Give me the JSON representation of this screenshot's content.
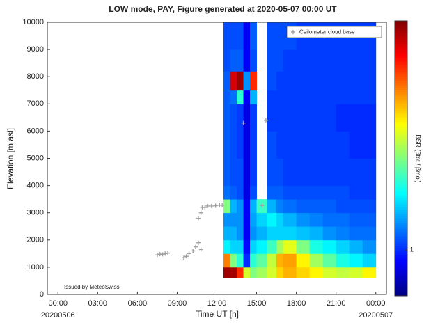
{
  "chart_data": {
    "type": "heatmap",
    "title": "LOW mode, PAY, Figure generated at 2020-05-07 00:00 UT",
    "x_label": "Time UT [h]",
    "y_label": "Elevation [m asl]",
    "colorbar_label": "BSR (βtot / βmol)",
    "annotation": "Issued by MeteoSwiss",
    "xlim": [
      -0.8,
      24.8
    ],
    "xticks": [
      {
        "value": 0,
        "label": "00:00"
      },
      {
        "value": 3,
        "label": "03:00"
      },
      {
        "value": 6,
        "label": "06:00"
      },
      {
        "value": 9,
        "label": "09:00"
      },
      {
        "value": 12,
        "label": "12:00"
      },
      {
        "value": 15,
        "label": "15:00"
      },
      {
        "value": 18,
        "label": "18:00"
      },
      {
        "value": 21,
        "label": "21:00"
      },
      {
        "value": 24,
        "label": "00:00"
      }
    ],
    "x_date_labels": [
      {
        "value": 0,
        "label": "20200506"
      },
      {
        "value": 24,
        "label": "20200507"
      }
    ],
    "ylim": [
      0,
      10000
    ],
    "yticks": [
      0,
      1000,
      2000,
      3000,
      4000,
      5000,
      6000,
      7000,
      8000,
      9000,
      10000
    ],
    "x_edges": [
      12.5,
      13,
      13.5,
      14,
      14.5,
      15,
      15.8,
      16.5,
      17,
      18,
      19,
      20,
      21,
      22,
      23,
      24
    ],
    "y_edges": [
      600,
      1000,
      1500,
      2000,
      2500,
      3000,
      3500,
      4000,
      5000,
      6000,
      7000,
      7500,
      8200,
      9000,
      10000
    ],
    "zlim": [
      0,
      6
    ],
    "zticks": [
      1
    ],
    "z": [
      [
        5.8,
        5.8,
        5,
        3.5,
        3,
        3.2,
        3.5,
        4,
        4.2,
        4,
        3.8,
        3.5,
        3.4,
        3.5,
        3.8
      ],
      [
        4.5,
        3,
        2.5,
        1,
        2.5,
        2.8,
        3.4,
        4.2,
        4.3,
        3.8,
        3.2,
        2.8,
        2.4,
        2.2,
        2
      ],
      [
        2.2,
        2,
        2,
        0.8,
        2,
        2.2,
        2.6,
        3.2,
        3.6,
        3,
        2.4,
        2.2,
        2,
        1.8,
        1.6
      ],
      [
        1.8,
        1.8,
        1.6,
        0.7,
        1.6,
        1.8,
        2,
        2,
        2,
        1.9,
        1.8,
        1.6,
        1.5,
        1.4,
        1.4
      ],
      [
        1.6,
        1.6,
        1.6,
        0.7,
        1.7,
        2,
        2.2,
        2,
        1.8,
        1.6,
        1.5,
        1.4,
        1.4,
        1.3,
        1.3
      ],
      [
        3,
        1.8,
        1.6,
        0.7,
        1.8,
        2.6,
        1.8,
        1.5,
        1.4,
        1.3,
        1.3,
        1.3,
        1.2,
        1.2,
        1.2
      ],
      [
        1.4,
        1.3,
        1.2,
        0.6,
        1.2,
        null,
        1.3,
        1.3,
        1.2,
        1.2,
        1.2,
        1.2,
        1.2,
        1.1,
        1.1
      ],
      [
        1.3,
        1.2,
        1.2,
        0.6,
        1.1,
        null,
        1.2,
        1.2,
        1.1,
        1.1,
        1.1,
        1.1,
        1.1,
        1.1,
        1.1
      ],
      [
        1.3,
        1.2,
        1.1,
        0.6,
        1.1,
        null,
        1.2,
        1.1,
        1.1,
        1.1,
        1.1,
        1.1,
        1.1,
        1,
        1
      ],
      [
        1.3,
        1.2,
        1.1,
        0.6,
        1.1,
        null,
        1.1,
        1.1,
        1.1,
        1.1,
        1.1,
        1.1,
        1,
        1,
        1
      ],
      [
        1.3,
        1.4,
        2.5,
        0.7,
        1.8,
        null,
        1.1,
        1.1,
        1.1,
        1.1,
        1.1,
        1.1,
        1.1,
        1.1,
        1.1
      ],
      [
        1.3,
        5.5,
        5.8,
        1.6,
        5,
        null,
        1.2,
        1.1,
        1.1,
        1.1,
        1.1,
        1.1,
        1.1,
        1.1,
        1.1
      ],
      [
        1.2,
        1.3,
        1.3,
        0.7,
        1.2,
        null,
        1.2,
        1.2,
        1.1,
        1.1,
        1.1,
        1.1,
        1.1,
        1.1,
        1.1
      ],
      [
        1.2,
        1.2,
        1.2,
        0.7,
        1.3,
        null,
        1.2,
        1.2,
        1.2,
        1.1,
        1.1,
        1.1,
        1.1,
        1.1,
        1.1
      ]
    ],
    "series": [
      {
        "name": "Ceilometer cloud base",
        "type": "scatter",
        "color": "#a0a0a0",
        "x": [
          7.5,
          7.7,
          7.9,
          8.1,
          8.3,
          9.5,
          9.7,
          9.9,
          10.2,
          10.4,
          10.6,
          10.8,
          10.6,
          10.8,
          10.9,
          11.1,
          11.3,
          11.6,
          11.9,
          12.2,
          12.4,
          14.0,
          15.4,
          15.7
        ],
        "values": [
          1450,
          1480,
          1470,
          1500,
          1520,
          1350,
          1400,
          1500,
          1600,
          1750,
          1900,
          1650,
          2800,
          3000,
          3200,
          3200,
          3250,
          3250,
          3260,
          3280,
          3280,
          6300,
          3270,
          6400
        ]
      }
    ],
    "legend": "upper right"
  }
}
